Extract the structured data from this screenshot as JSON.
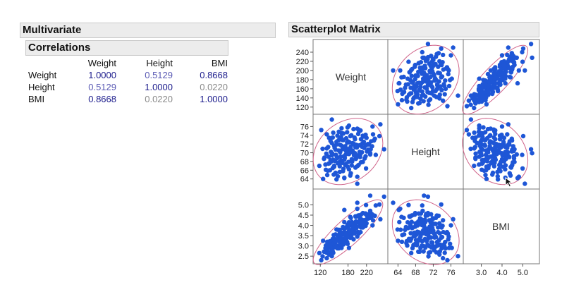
{
  "multivariate": {
    "title": "Multivariate"
  },
  "correlations": {
    "title": "Correlations",
    "columns": [
      "Weight",
      "Height",
      "BMI"
    ],
    "rows": [
      {
        "label": "Weight",
        "values": [
          "1.0000",
          "0.5129",
          "0.8668"
        ]
      },
      {
        "label": "Height",
        "values": [
          "0.5129",
          "1.0000",
          "0.0220"
        ]
      },
      {
        "label": "BMI",
        "values": [
          "0.8668",
          "0.0220",
          "1.0000"
        ]
      }
    ]
  },
  "scatterplot": {
    "title": "Scatterplot Matrix",
    "variables": [
      "Weight",
      "Height",
      "BMI"
    ]
  },
  "colors": {
    "point": "#1e56d6",
    "ellipse": "#d0648a",
    "strong": "#1c1c8c",
    "weak": "#8a8a8a"
  },
  "chart_data": {
    "type": "scatter",
    "title": "Scatterplot Matrix",
    "variables": [
      {
        "name": "Weight",
        "ticks": [
          120,
          140,
          160,
          180,
          200,
          220,
          240
        ],
        "bottom_ticks": [
          120,
          180,
          220
        ],
        "range": [
          112,
          260
        ]
      },
      {
        "name": "Height",
        "ticks": [
          64,
          66,
          68,
          70,
          72,
          74,
          76
        ],
        "bottom_ticks": [
          64,
          68,
          72,
          76
        ],
        "range": [
          62.5,
          78
        ]
      },
      {
        "name": "BMI",
        "ticks": [
          2.5,
          3.0,
          3.5,
          4.0,
          4.5,
          5.0
        ],
        "bottom_ticks": [
          3.0,
          4.0,
          5.0
        ],
        "range": [
          2.3,
          5.6
        ]
      }
    ],
    "tick_labels": {
      "Weight": [
        "120",
        "140",
        "160",
        "180",
        "200",
        "220",
        "240"
      ],
      "Height": [
        "64",
        "66",
        "68",
        "70",
        "72",
        "74",
        "76"
      ],
      "BMI": [
        "2.5",
        "3.0",
        "3.5",
        "4.0",
        "4.5",
        "5.0"
      ],
      "bottom_Weight": [
        "120",
        "180",
        "220"
      ],
      "bottom_Height": [
        "64",
        "68",
        "72",
        "76"
      ],
      "bottom_BMI": [
        "3.0",
        "4.0",
        "5.0"
      ]
    },
    "points": [
      [
        150,
        66.8,
        3.25
      ],
      [
        180,
        70.3,
        3.66
      ],
      [
        205,
        71.7,
        3.98
      ],
      [
        165,
        68.2,
        3.55
      ],
      [
        190,
        72.2,
        3.6
      ],
      [
        135,
        64.9,
        3.2
      ],
      [
        220,
        73.4,
        4.1
      ],
      [
        175,
        67.4,
        3.9
      ],
      [
        160,
        70.5,
        3.23
      ],
      [
        198,
        68.9,
        4.18
      ],
      [
        145,
        69.4,
        3.01
      ],
      [
        185,
        73.8,
        3.4
      ],
      [
        210,
        70.1,
        4.28
      ],
      [
        170,
        66.3,
        3.87
      ],
      [
        155,
        71.9,
        3.0
      ],
      [
        230,
        72.6,
        4.37
      ],
      [
        140,
        67.6,
        3.06
      ],
      [
        195,
        69.9,
        3.99
      ],
      [
        162,
        65.6,
        3.78
      ],
      [
        178,
        74.7,
        3.19
      ],
      [
        215,
        71.1,
        4.25
      ],
      [
        148,
        68.4,
        3.16
      ],
      [
        188,
        67.1,
        4.17
      ],
      [
        168,
        72.9,
        3.16
      ],
      [
        202,
        74.3,
        3.67
      ],
      [
        132,
        66.1,
        3.02
      ],
      [
        182,
        69.7,
        3.75
      ],
      [
        224,
        70.7,
        4.49
      ],
      [
        158,
        64.6,
        3.79
      ],
      [
        192,
        75.4,
        3.32
      ],
      [
        173,
        68.8,
        3.66
      ],
      [
        208,
        73.1,
        3.9
      ],
      [
        143,
        70.2,
        2.92
      ],
      [
        186,
        71.4,
        3.67
      ],
      [
        153,
        65.4,
        3.56
      ],
      [
        212,
        67.9,
        4.6
      ],
      [
        165,
        73.6,
        3.06
      ],
      [
        197,
        66.7,
        4.42
      ],
      [
        177,
        70.9,
        3.5
      ],
      [
        238,
        73.2,
        4.47
      ],
      [
        128,
        68.6,
        2.72
      ],
      [
        183,
        72.4,
        3.5
      ],
      [
        206,
        69.3,
        4.29
      ],
      [
        150,
        71.6,
        2.93
      ],
      [
        172,
        64.3,
        4.16
      ],
      [
        199,
        71.2,
        3.94
      ],
      [
        160,
        67.8,
        3.48
      ],
      [
        218,
        74.1,
        3.98
      ],
      [
        138,
        69.1,
        2.9
      ],
      [
        189,
        68.3,
        4.05
      ],
      [
        157,
        73.9,
        2.88
      ],
      [
        226,
        70.4,
        4.56
      ],
      [
        147,
        66.5,
        3.34
      ],
      [
        179,
        75.8,
        3.1
      ],
      [
        203,
        67.2,
        4.49
      ],
      [
        168,
        70.8,
        3.35
      ],
      [
        194,
        73.5,
        3.61
      ],
      [
        136,
        65.9,
        3.14
      ],
      [
        211,
        72.1,
        4.08
      ],
      [
        175,
        69.6,
        3.61
      ],
      [
        152,
        68.1,
        3.28
      ],
      [
        232,
        71.5,
        4.54
      ],
      [
        163,
        71.8,
        3.16
      ],
      [
        186,
        65.3,
        4.37
      ],
      [
        142,
        72.7,
        2.69
      ],
      [
        200,
        69.4,
        4.15
      ],
      [
        170,
        74.4,
        3.07
      ],
      [
        216,
        68.7,
        4.58
      ],
      [
        131,
        67.3,
        2.89
      ],
      [
        184,
        70.6,
        3.69
      ],
      [
        155,
        63.9,
        3.8
      ],
      [
        207,
        75.1,
        3.67
      ],
      [
        178,
        72.3,
        3.41
      ],
      [
        146,
        69.8,
        2.99
      ],
      [
        196,
        71.3,
        3.86
      ],
      [
        240,
        69.5,
        4.97
      ],
      [
        162,
        66.9,
        3.62
      ],
      [
        188,
        68.5,
        4.0
      ],
      [
        125,
        70.9,
        2.49
      ],
      [
        213,
        73.7,
        3.92
      ],
      [
        171,
        69.2,
        3.57
      ],
      [
        159,
        72.8,
        3.0
      ],
      [
        201,
        67.0,
        4.47
      ],
      [
        148,
        74.6,
        2.66
      ],
      [
        225,
        71.9,
        4.35
      ],
      [
        138,
        67.5,
        3.03
      ],
      [
        182,
        66.2,
        4.15
      ],
      [
        209,
        70.0,
        4.24
      ],
      [
        166,
        75.6,
        2.9
      ],
      [
        193,
        72.0,
        3.73
      ],
      [
        153,
        70.7,
        3.06
      ],
      [
        219,
        66.4,
        4.99
      ],
      [
        176,
        73.3,
        3.28
      ],
      [
        144,
        68.0,
        3.11
      ],
      [
        204,
        74.9,
        3.63
      ],
      [
        167,
        67.7,
        3.64
      ],
      [
        234,
        74.2,
        4.25
      ],
      [
        156,
        69.0,
        3.29
      ],
      [
        190,
        70.5,
        3.84
      ],
      [
        134,
        71.0,
        2.66
      ],
      [
        228,
        69.6,
        4.71
      ],
      [
        174,
        71.5,
        3.41
      ],
      [
        161,
        73.0,
        3.03
      ],
      [
        197,
        68.6,
        4.19
      ],
      [
        149,
        65.0,
        3.53
      ],
      [
        214,
        72.5,
        4.07
      ],
      [
        181,
        67.9,
        3.94
      ],
      [
        139,
        73.4,
        2.58
      ],
      [
        205,
        70.2,
        4.16
      ],
      [
        169,
        65.8,
        3.92
      ],
      [
        187,
        74.0,
        3.43
      ],
      [
        151,
        71.1,
        2.99
      ],
      [
        221,
        70.3,
        4.47
      ],
      [
        164,
        69.1,
        3.45
      ],
      [
        196,
        66.6,
        4.44
      ],
      [
        133,
        69.8,
        2.73
      ],
      [
        180,
        72.6,
        3.43
      ],
      [
        212,
        73.9,
        3.9
      ],
      [
        158,
        67.6,
        3.47
      ],
      [
        191,
        70.0,
        3.88
      ],
      [
        145,
        72.2,
        2.79
      ],
      [
        236,
        72.8,
        4.48
      ],
      [
        172,
        68.4,
        3.69
      ],
      [
        203,
        75.3,
        3.6
      ],
      [
        154,
        69.5,
        3.22
      ],
      [
        185,
        64.8,
        4.41
      ],
      [
        166,
        71.6,
        3.18
      ],
      [
        218,
        69.2,
        4.58
      ],
      [
        141,
        66.0,
        3.23
      ],
      [
        198,
        71.8,
        3.86
      ],
      [
        176,
        70.4,
        3.57
      ],
      [
        129,
        68.9,
        2.72
      ],
      [
        208,
        67.8,
        4.52
      ],
      [
        160,
        74.8,
        2.88
      ],
      [
        183,
        69.9,
        3.77
      ],
      [
        223,
        72.0,
        4.33
      ],
      [
        150,
        67.0,
        3.35
      ],
      [
        195,
        73.1,
        3.67
      ],
      [
        163,
        70.1,
        3.33
      ],
      [
        137,
        71.3,
        2.7
      ],
      [
        210,
        71.4,
        4.14
      ],
      [
        179,
        66.8,
        4.03
      ],
      [
        147,
        73.5,
        2.73
      ],
      [
        189,
        68.0,
        4.1
      ],
      [
        170,
        72.9,
        3.2
      ],
      [
        200,
        64.5,
        4.81
      ],
      [
        157,
        68.8,
        3.33
      ],
      [
        229,
        70.8,
        4.6
      ],
      [
        166,
        74.5,
        3.01
      ],
      [
        184,
        71.0,
        3.67
      ],
      [
        200,
        75.5,
        3.45
      ],
      [
        193,
        69.4,
        4.02
      ],
      [
        142,
        68.3,
        3.04
      ],
      [
        219,
        71.7,
        4.28
      ],
      [
        174,
        67.2,
        3.87
      ],
      [
        155,
        72.5,
        2.96
      ],
      [
        206,
        69.0,
        4.35
      ],
      [
        134,
        74.2,
        2.4
      ],
      [
        250,
        76.5,
        4.3
      ],
      [
        118,
        67.0,
        2.65
      ],
      [
        248,
        73.8,
        5.02
      ],
      [
        126,
        64.0,
        3.25
      ],
      [
        182,
        76.2,
        2.9
      ],
      [
        200,
        62.9,
        5.1
      ],
      [
        233,
        76.0,
        4.0
      ],
      [
        172,
        64.2,
        4.75
      ],
      [
        145,
        77.6,
        2.5
      ],
      [
        228,
        69.9,
        5.45
      ],
      [
        122,
        75.2,
        2.3
      ],
      [
        258,
        70.8,
        5.4
      ]
    ]
  }
}
